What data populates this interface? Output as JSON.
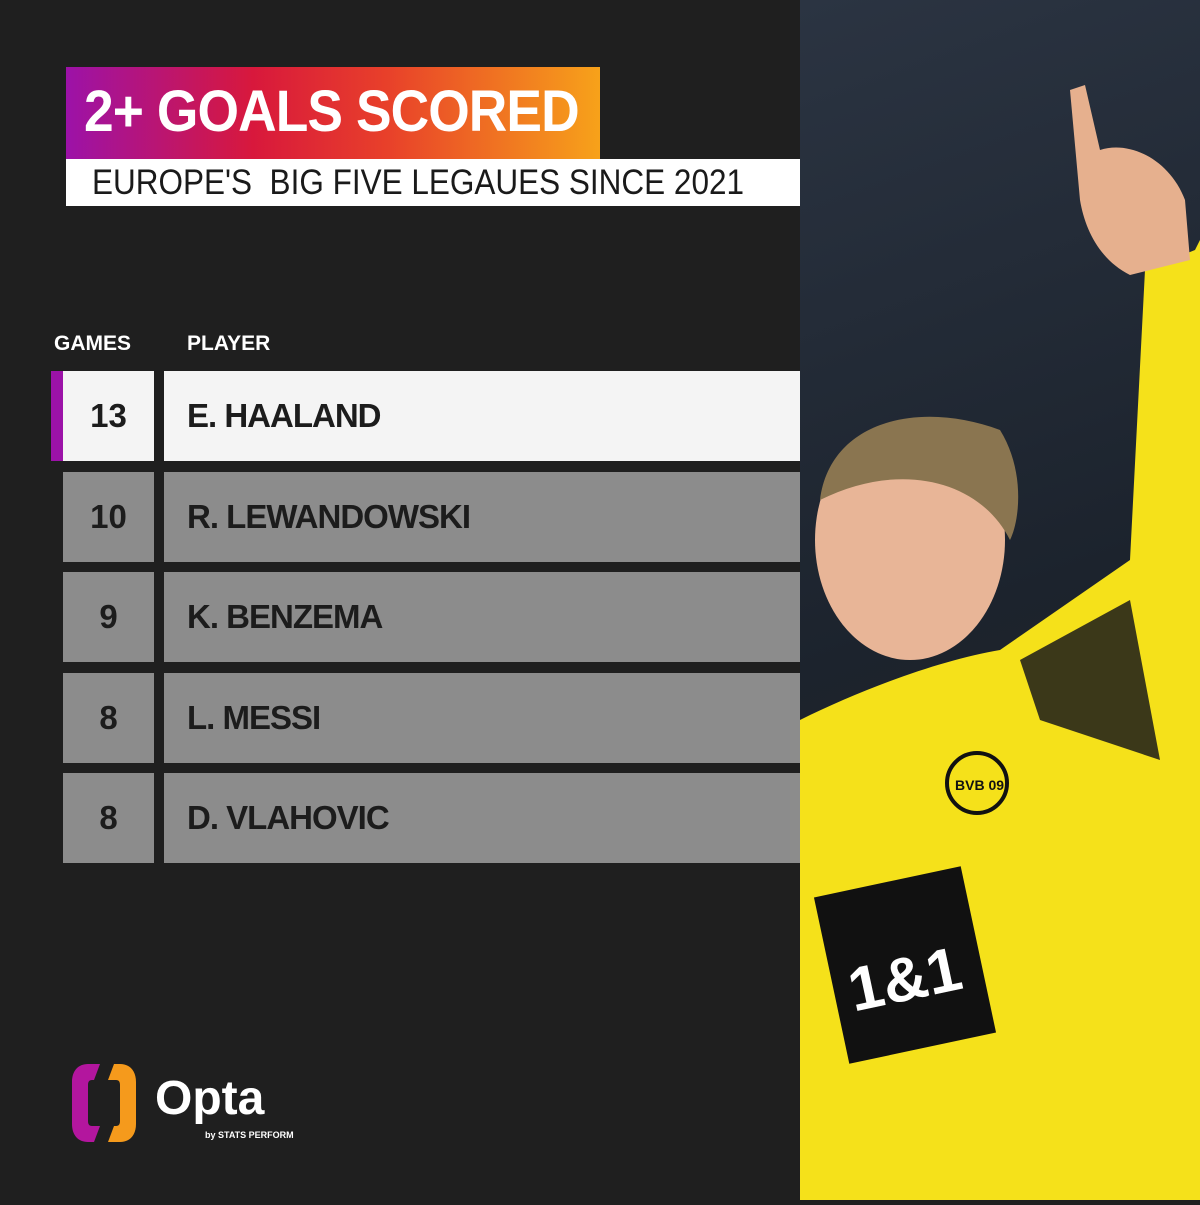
{
  "title": "2+ GOALS SCORED",
  "subtitle": "EUROPE'S  BIG FIVE LEGAUES SINCE 2021",
  "headers": {
    "games": "GAMES",
    "player": "PLAYER"
  },
  "rows": [
    {
      "games": "13",
      "player": "E. HAALAND"
    },
    {
      "games": "10",
      "player": "R. LEWANDOWSKI"
    },
    {
      "games": "9",
      "player": "K. BENZEMA"
    },
    {
      "games": "8",
      "player": "L. MESSI"
    },
    {
      "games": "8",
      "player": "D. VLAHOVIC"
    }
  ],
  "logo": {
    "name": "Opta",
    "tagline": "by STATS PERFORM"
  },
  "photo": {
    "sponsor": "1&1",
    "crest": "BVB 09"
  },
  "colors": {
    "accent": "#9c12a8",
    "gradient_end": "#f7a21a",
    "jersey": "#f5e11a"
  }
}
